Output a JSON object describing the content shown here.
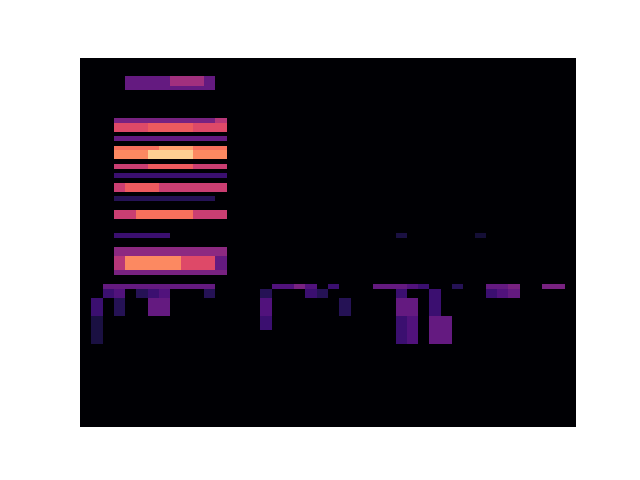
{
  "chart_data": {
    "type": "heatmap",
    "tick_labels": false,
    "color": "magma",
    "xlim": [
      0,
      44
    ],
    "ylim": [
      80,
      0
    ],
    "zlim": [
      0,
      1
    ],
    "cells": [
      [
        4,
        8,
        4,
        6,
        0.3
      ],
      [
        8,
        11,
        4,
        6,
        0.45
      ],
      [
        11,
        12,
        4,
        6,
        0.3
      ],
      [
        4,
        12,
        6,
        7,
        0.3
      ],
      [
        3,
        12,
        13,
        14,
        0.35
      ],
      [
        12,
        13,
        13,
        14,
        0.5
      ],
      [
        3,
        6,
        14,
        16,
        0.6
      ],
      [
        6,
        10,
        14,
        16,
        0.65
      ],
      [
        10,
        13,
        14,
        16,
        0.6
      ],
      [
        3,
        13,
        17,
        18,
        0.3
      ],
      [
        3,
        7,
        19,
        20,
        0.7
      ],
      [
        7,
        10,
        19,
        20,
        0.8
      ],
      [
        10,
        13,
        19,
        20,
        0.7
      ],
      [
        3,
        6,
        20,
        22,
        0.75
      ],
      [
        6,
        10,
        20,
        22,
        0.9
      ],
      [
        10,
        13,
        20,
        22,
        0.75
      ],
      [
        3,
        6,
        23,
        24,
        0.55
      ],
      [
        6,
        10,
        23,
        24,
        0.65
      ],
      [
        10,
        13,
        23,
        24,
        0.55
      ],
      [
        3,
        13,
        25,
        26,
        0.2
      ],
      [
        3,
        4,
        27,
        29,
        0.55
      ],
      [
        4,
        7,
        27,
        29,
        0.65
      ],
      [
        7,
        13,
        27,
        29,
        0.55
      ],
      [
        3,
        12,
        30,
        31,
        0.15
      ],
      [
        3,
        5,
        33,
        35,
        0.55
      ],
      [
        5,
        10,
        33,
        35,
        0.7
      ],
      [
        10,
        13,
        33,
        35,
        0.55
      ],
      [
        3,
        8,
        38,
        39,
        0.2
      ],
      [
        28,
        29,
        38,
        39,
        0.12
      ],
      [
        35,
        36,
        38,
        39,
        0.1
      ],
      [
        3,
        13,
        41,
        43,
        0.4
      ],
      [
        3,
        4,
        43,
        46,
        0.5
      ],
      [
        4,
        9,
        43,
        46,
        0.75
      ],
      [
        9,
        12,
        43,
        46,
        0.6
      ],
      [
        12,
        13,
        43,
        46,
        0.3
      ],
      [
        3,
        13,
        46,
        47,
        0.35
      ],
      [
        2,
        12,
        49,
        50,
        0.3
      ],
      [
        17,
        19,
        49,
        50,
        0.25
      ],
      [
        19,
        20,
        49,
        50,
        0.35
      ],
      [
        20,
        21,
        49,
        50,
        0.25
      ],
      [
        22,
        23,
        49,
        50,
        0.2
      ],
      [
        26,
        29,
        49,
        50,
        0.3
      ],
      [
        29,
        30,
        49,
        50,
        0.25
      ],
      [
        30,
        31,
        49,
        50,
        0.2
      ],
      [
        33,
        34,
        49,
        50,
        0.15
      ],
      [
        36,
        38,
        49,
        50,
        0.3
      ],
      [
        38,
        39,
        49,
        50,
        0.35
      ],
      [
        41,
        43,
        49,
        50,
        0.35
      ],
      [
        2,
        3,
        50,
        52,
        0.2
      ],
      [
        3,
        4,
        50,
        52,
        0.25
      ],
      [
        5,
        6,
        50,
        52,
        0.15
      ],
      [
        6,
        7,
        50,
        52,
        0.2
      ],
      [
        7,
        8,
        50,
        52,
        0.25
      ],
      [
        11,
        12,
        50,
        52,
        0.15
      ],
      [
        16,
        17,
        50,
        52,
        0.15
      ],
      [
        20,
        21,
        50,
        52,
        0.2
      ],
      [
        21,
        22,
        50,
        52,
        0.15
      ],
      [
        28,
        29,
        50,
        52,
        0.2
      ],
      [
        31,
        32,
        50,
        52,
        0.2
      ],
      [
        36,
        37,
        50,
        52,
        0.2
      ],
      [
        37,
        38,
        50,
        52,
        0.25
      ],
      [
        38,
        39,
        50,
        52,
        0.3
      ],
      [
        1,
        2,
        52,
        56,
        0.2
      ],
      [
        3,
        4,
        52,
        56,
        0.15
      ],
      [
        6,
        8,
        52,
        56,
        0.3
      ],
      [
        16,
        17,
        52,
        56,
        0.25
      ],
      [
        23,
        24,
        52,
        56,
        0.15
      ],
      [
        28,
        30,
        52,
        56,
        0.3
      ],
      [
        31,
        32,
        52,
        56,
        0.2
      ],
      [
        1,
        2,
        56,
        62,
        0.12
      ],
      [
        16,
        17,
        56,
        59,
        0.2
      ],
      [
        28,
        29,
        56,
        62,
        0.2
      ],
      [
        29,
        30,
        56,
        62,
        0.25
      ],
      [
        31,
        33,
        56,
        62,
        0.3
      ]
    ]
  }
}
